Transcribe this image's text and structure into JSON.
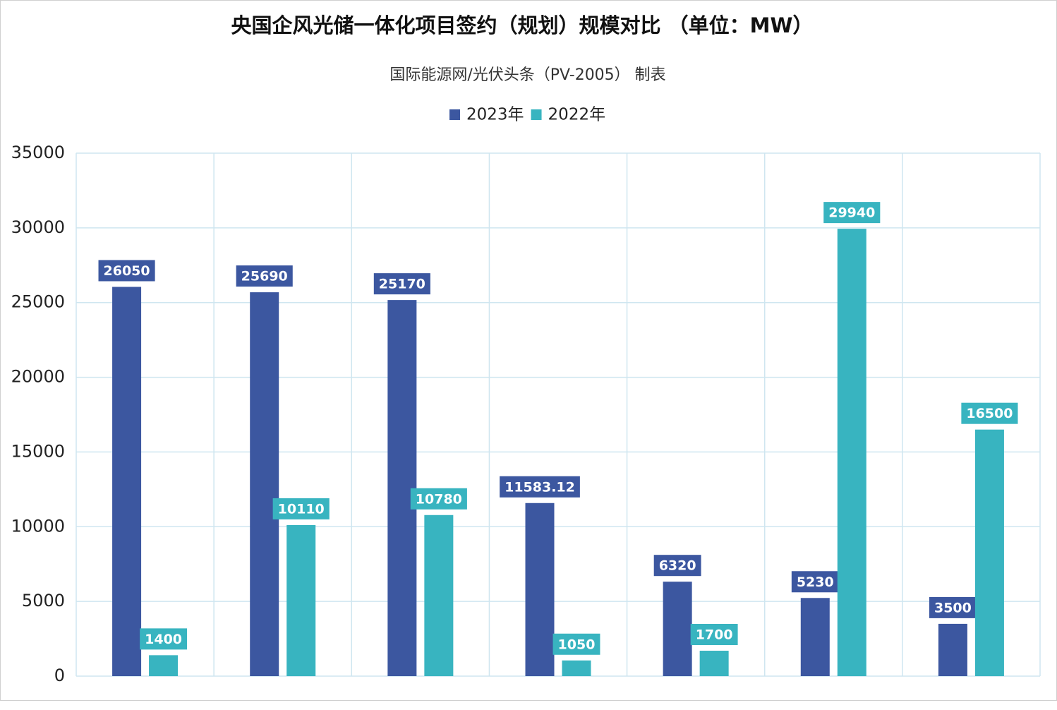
{
  "chart_data": {
    "type": "bar",
    "title": "央国企风光储一体化项目签约（规划）规模对比 （单位：MW）",
    "subtitle": "国际能源网/光伏头条（PV-2005） 制表",
    "categories": [
      null,
      null,
      null,
      null,
      null,
      null,
      null
    ],
    "series": [
      {
        "name": "2023年",
        "color": "#3c57a0",
        "values": [
          26050,
          25690,
          25170,
          11583.12,
          6320,
          5230,
          3500
        ]
      },
      {
        "name": "2022年",
        "color": "#38b4c0",
        "values": [
          1400,
          10110,
          10780,
          1050,
          1700,
          29940,
          16500
        ]
      }
    ],
    "ylim": [
      0,
      35000
    ],
    "yticks": [
      0,
      5000,
      10000,
      15000,
      20000,
      25000,
      30000,
      35000
    ],
    "grid": true,
    "legend": "top"
  }
}
